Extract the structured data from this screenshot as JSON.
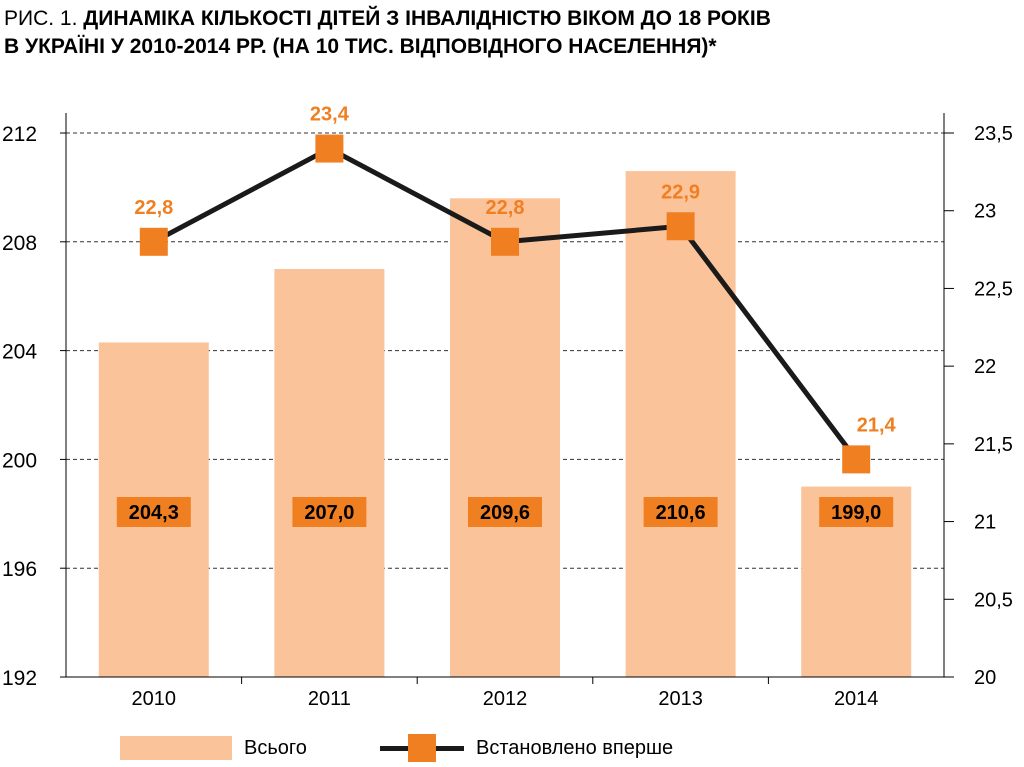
{
  "title": {
    "prefix": "РИС. 1.",
    "line1": "ДИНАМІКА КІЛЬКОСТІ ДІТЕЙ З ІНВАЛІДНІСТЮ ВІКОМ ДО 18 РОКІВ",
    "line2": "В УКРАЇНІ У 2010-2014 РР. (НА 10 ТИС. ВІДПОВІДНОГО НАСЕЛЕННЯ)*"
  },
  "chart_data": {
    "type": "bar",
    "categories": [
      "2010",
      "2011",
      "2012",
      "2013",
      "2014"
    ],
    "series": [
      {
        "name": "Всього",
        "type": "bar",
        "axis": "left",
        "values": [
          204.3,
          207.0,
          209.6,
          210.6,
          199.0
        ],
        "labels": [
          "204,3",
          "207,0",
          "209,6",
          "210,6",
          "199,0"
        ]
      },
      {
        "name": "Встановлено вперше",
        "type": "line",
        "axis": "right",
        "values": [
          22.8,
          23.4,
          22.8,
          22.9,
          21.4
        ],
        "labels": [
          "22,8",
          "23,4",
          "22,8",
          "22,9",
          "21,4"
        ]
      }
    ],
    "y_left": {
      "range": [
        192,
        212
      ],
      "ticks": [
        "192",
        "196",
        "200",
        "204",
        "208",
        "212"
      ]
    },
    "y_right": {
      "range": [
        20,
        23.5
      ],
      "ticks": [
        "20",
        "20,5",
        "21",
        "21,5",
        "22",
        "22,5",
        "23",
        "23,5"
      ]
    },
    "grid": true,
    "legend_position": "bottom"
  },
  "colors": {
    "bar": "#fbc39a",
    "orange": "#f07f22",
    "line": "#1a1a1a",
    "label_box": "#f07f22",
    "grid": "#333333"
  }
}
